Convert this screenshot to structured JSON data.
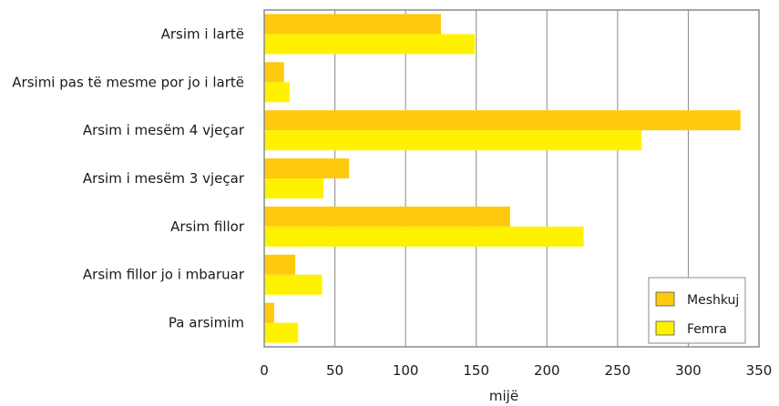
{
  "chart_data": {
    "type": "bar",
    "orientation": "horizontal",
    "categories": [
      "Arsim i lartë",
      "Arsimi pas të mesme por jo i lartë",
      "Arsim i mesëm 4 vjeçar",
      "Arsim i mesëm 3 vjeçar",
      "Arsim fillor",
      "Arsim fillor jo i mbaruar",
      "Pa arsimim"
    ],
    "series": [
      {
        "name": "Meshkuj",
        "color": "#ffc90e",
        "values": [
          125,
          14,
          337,
          60,
          174,
          22,
          7
        ]
      },
      {
        "name": "Femra",
        "color": "#fff200",
        "values": [
          149,
          18,
          267,
          42,
          226,
          41,
          24
        ]
      }
    ],
    "xticks": [
      0,
      50,
      100,
      150,
      200,
      250,
      300,
      350
    ],
    "xlim": [
      0,
      350
    ],
    "xlabel": "mijë",
    "ylabel": "",
    "title": "",
    "grid": "vertical",
    "legend_position": "bottom-right"
  }
}
